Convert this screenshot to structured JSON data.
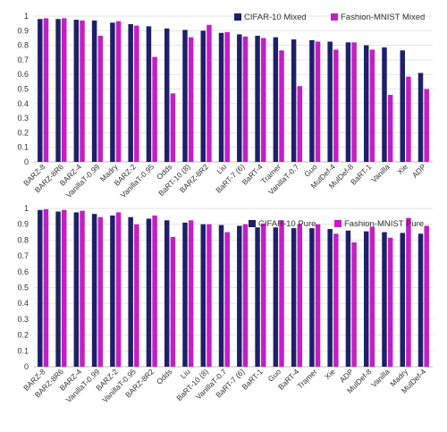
{
  "chart_data": [
    {
      "type": "bar",
      "categories": [
        "BARZ-8",
        "BARZ-8R6",
        "BARZ-4",
        "VanillaT-0.99",
        "Madry",
        "BARZ-2",
        "VanillaT-0.95",
        "Odds",
        "BaRT-10 (8)",
        "BARZ-8R2",
        "Liu",
        "BaRT-7 (6)",
        "BaRT-4",
        "Tramer",
        "VanillaT-0.7",
        "Guo",
        "MulDef-4",
        "MulDef-8",
        "BaRT-1",
        "Vanilla",
        "Xie",
        "ADP"
      ],
      "series": [
        {
          "name": "CIFAR-10 Mixed",
          "color": "#1f1f6b",
          "values": [
            0.98,
            0.98,
            0.975,
            0.97,
            0.955,
            0.945,
            0.93,
            0.915,
            0.905,
            0.9,
            0.885,
            0.875,
            0.865,
            0.855,
            0.84,
            0.835,
            0.825,
            0.82,
            0.8,
            0.785,
            0.765,
            0.61
          ]
        },
        {
          "name": "Fashion-MNIST Mixed",
          "color": "#c41ec4",
          "values": [
            0.985,
            0.985,
            0.97,
            0.865,
            0.965,
            0.935,
            0.72,
            0.47,
            0.855,
            0.94,
            0.89,
            0.86,
            0.85,
            0.765,
            0.52,
            0.825,
            0.77,
            0.82,
            0.77,
            0.46,
            0.585,
            0.5
          ]
        }
      ],
      "ylim": [
        0,
        1
      ],
      "yticks": [
        "0",
        "0.1",
        "0.2",
        "0.3",
        "0.4",
        "0.5",
        "0.6",
        "0.7",
        "0.8",
        "0.9",
        "1"
      ],
      "grid": true,
      "legend_position": "top-right"
    },
    {
      "type": "bar",
      "categories": [
        "BARZ-8",
        "BARZ-8R6",
        "BARZ-4",
        "VanillaT-0.99",
        "BARZ-2",
        "VanillaT-0.95",
        "BARZ-8R2",
        "Odds",
        "Liu",
        "BaRT-10 (8)",
        "VanillaT-0.7",
        "BaRT-7 (6)",
        "BaRT-1",
        "Guo",
        "BaRT-4",
        "Tramer",
        "Xie",
        "ADP",
        "MulDef-8",
        "Vanilla",
        "Madry",
        "MulDef-4"
      ],
      "series": [
        {
          "name": "CIFAR-10 Pure",
          "color": "#1f1f6b",
          "values": [
            0.99,
            0.98,
            0.975,
            0.965,
            0.955,
            0.945,
            0.935,
            0.925,
            0.91,
            0.9,
            0.895,
            0.89,
            0.88,
            0.88,
            0.875,
            0.875,
            0.87,
            0.86,
            0.855,
            0.85,
            0.845,
            0.84
          ]
        },
        {
          "name": "Fashion-MNIST Pure",
          "color": "#c41ec4",
          "values": [
            0.995,
            0.99,
            0.985,
            0.945,
            0.975,
            0.9,
            0.955,
            0.82,
            0.925,
            0.9,
            0.85,
            0.9,
            0.905,
            0.925,
            0.9,
            0.9,
            0.84,
            0.785,
            0.885,
            0.815,
            0.94,
            0.89
          ]
        }
      ],
      "ylim": [
        0,
        1
      ],
      "yticks": [
        "0",
        "0.1",
        "0.2",
        "0.3",
        "0.4",
        "0.5",
        "0.6",
        "0.7",
        "0.8",
        "0.9",
        "1"
      ],
      "grid": true,
      "legend_position": "top-right"
    }
  ]
}
